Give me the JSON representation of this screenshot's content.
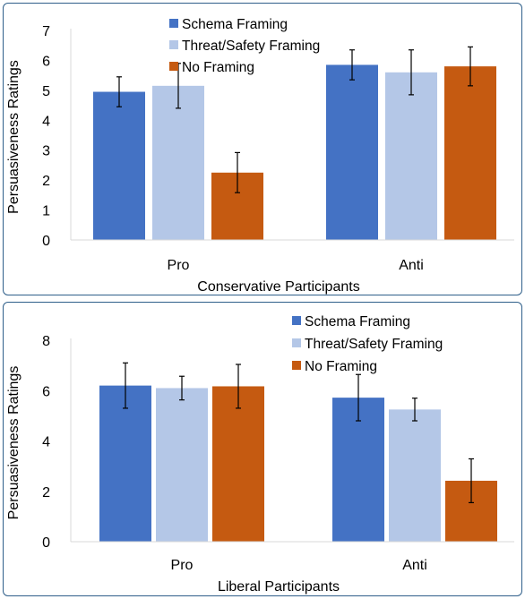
{
  "chart_data": [
    {
      "type": "bar",
      "xlabel": "Conservative Participants",
      "ylabel": "Persuasiveness Ratings",
      "categories": [
        "Pro",
        "Anti"
      ],
      "ylim": [
        0,
        7
      ],
      "yticks": [
        "0",
        "1",
        "2",
        "3",
        "4",
        "5",
        "6",
        "7"
      ],
      "legend_position": "top-center",
      "series": [
        {
          "name": "Schema Framing",
          "color": "#4472c4",
          "values": [
            4.95,
            5.85
          ],
          "error": [
            0.5,
            0.5
          ]
        },
        {
          "name": "Threat/Safety Framing",
          "color": "#b4c7e7",
          "values": [
            5.15,
            5.6
          ],
          "error": [
            0.75,
            0.75
          ]
        },
        {
          "name": "No Framing",
          "color": "#c55a11",
          "values": [
            2.25,
            5.8
          ],
          "error": [
            0.67,
            0.65
          ]
        }
      ]
    },
    {
      "type": "bar",
      "xlabel": "Liberal Participants",
      "ylabel": "Persuasiveness Ratings",
      "categories": [
        "Pro",
        "Anti"
      ],
      "ylim": [
        0,
        8
      ],
      "yticks": [
        "0",
        "2",
        "4",
        "6",
        "8"
      ],
      "legend_position": "top-right",
      "series": [
        {
          "name": "Schema Framing",
          "color": "#4472c4",
          "values": [
            6.2,
            5.72
          ],
          "error": [
            0.9,
            0.92
          ]
        },
        {
          "name": "Threat/Safety Framing",
          "color": "#b4c7e7",
          "values": [
            6.1,
            5.25
          ],
          "error": [
            0.47,
            0.45
          ]
        },
        {
          "name": "No Framing",
          "color": "#c55a11",
          "values": [
            6.17,
            2.42
          ],
          "error": [
            0.87,
            0.87
          ]
        }
      ]
    }
  ]
}
